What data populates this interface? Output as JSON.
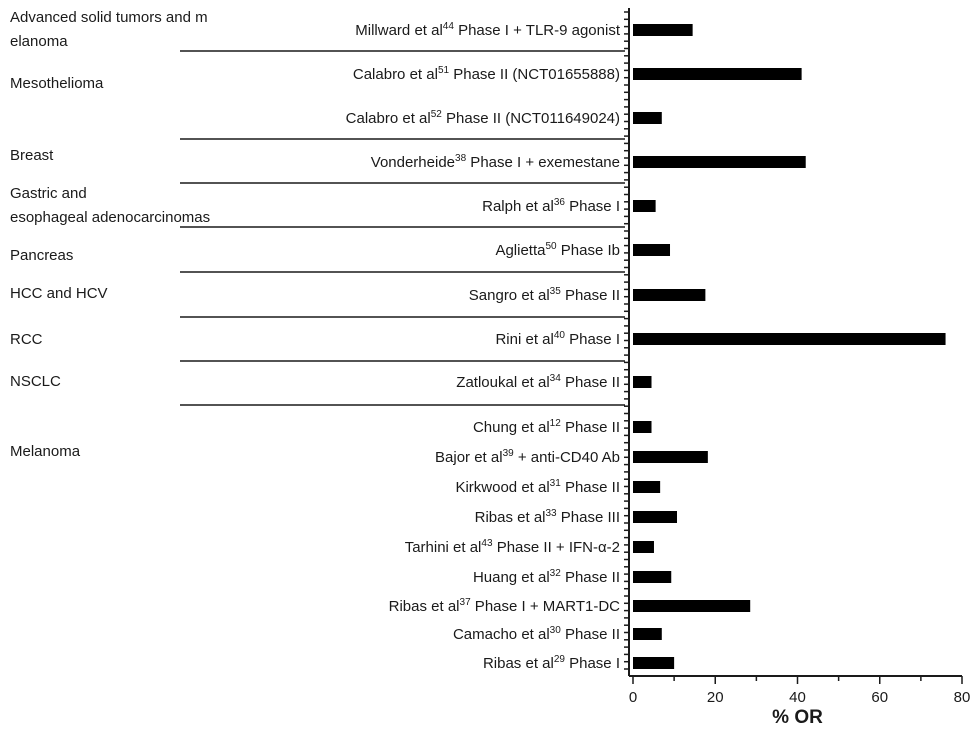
{
  "chart_data": {
    "type": "bar",
    "orientation": "horizontal",
    "xlabel": "% OR",
    "xlim": [
      0,
      80
    ],
    "xticks": [
      "0",
      "20",
      "40",
      "60",
      "80"
    ],
    "groups": [
      {
        "name": "Advanced solid tumors and melanoma",
        "rows": [
          {
            "label": "Millward et al44 Phase I + TLR-9 agonist",
            "author": "Millward et al",
            "ref": "44",
            "rest": " Phase I + TLR-9 agonist",
            "value": 14.5
          }
        ]
      },
      {
        "name": "Mesothelioma",
        "rows": [
          {
            "label": "Calabro et al51 Phase II (NCT01655888)",
            "author": "Calabro et al",
            "ref": "51",
            "rest": " Phase II (NCT01655888)",
            "value": 41
          },
          {
            "label": "Calabro et al52 Phase II (NCT011649024)",
            "author": "Calabro et al",
            "ref": "52",
            "rest": " Phase II (NCT011649024)",
            "value": 7
          }
        ]
      },
      {
        "name": "Breast",
        "rows": [
          {
            "label": "Vonderheide38 Phase I + exemestane",
            "author": "Vonderheide",
            "ref": "38",
            "rest": " Phase I + exemestane",
            "value": 42
          }
        ]
      },
      {
        "name": "Gastric and esophageal adenocarcinomas",
        "rows": [
          {
            "label": "Ralph et al36 Phase I",
            "author": "Ralph et al",
            "ref": "36",
            "rest": " Phase I",
            "value": 5.5
          }
        ]
      },
      {
        "name": "Pancreas",
        "rows": [
          {
            "label": "Aglietta50 Phase Ib",
            "author": "Aglietta",
            "ref": "50",
            "rest": " Phase Ib",
            "value": 9
          }
        ]
      },
      {
        "name": "HCC and HCV",
        "rows": [
          {
            "label": "Sangro et al35 Phase II",
            "author": "Sangro et al",
            "ref": "35",
            "rest": " Phase II",
            "value": 17.6
          }
        ]
      },
      {
        "name": "RCC",
        "rows": [
          {
            "label": "Rini et al40 Phase I",
            "author": "Rini et al",
            "ref": "40",
            "rest": " Phase I",
            "value": 76
          }
        ]
      },
      {
        "name": "NSCLC",
        "rows": [
          {
            "label": "Zatloukal et al34 Phase II",
            "author": "Zatloukal et al",
            "ref": "34",
            "rest": " Phase II",
            "value": 4.5
          }
        ]
      },
      {
        "name": "Melanoma",
        "rows": [
          {
            "label": "Chung et al12 Phase II",
            "author": "Chung et al",
            "ref": "12",
            "rest": " Phase II",
            "value": 4.5
          },
          {
            "label": "Bajor et al39 + anti-CD40 Ab",
            "author": "Bajor et al",
            "ref": "39",
            "rest": " + anti-CD40 Ab",
            "value": 18.2
          },
          {
            "label": "Kirkwood et al31 Phase II",
            "author": "Kirkwood et al",
            "ref": "31",
            "rest": " Phase II",
            "value": 6.6
          },
          {
            "label": "Ribas et al33 Phase III",
            "author": "Ribas et al",
            "ref": "33",
            "rest": " Phase III",
            "value": 10.7
          },
          {
            "label": "Tarhini et al43 Phase II + IFN-α-2",
            "author": "Tarhini et al",
            "ref": "43",
            "rest": " Phase II + IFN-α-2",
            "value": 5.1
          },
          {
            "label": "Huang et al32 Phase II",
            "author": "Huang et al",
            "ref": "32",
            "rest": " Phase II",
            "value": 9.3
          },
          {
            "label": "Ribas et al37 Phase I + MART1-DC",
            "author": "Ribas et al",
            "ref": "37",
            "rest": " Phase I + MART1-DC",
            "value": 28.5
          },
          {
            "label": "Camacho et al30 Phase II",
            "author": "Camacho et al",
            "ref": "30",
            "rest": " Phase II",
            "value": 7
          },
          {
            "label": "Ribas et al29 Phase I",
            "author": "Ribas et al",
            "ref": "29",
            "rest": " Phase I",
            "value": 10
          }
        ]
      }
    ],
    "bar_color": "#000000"
  }
}
